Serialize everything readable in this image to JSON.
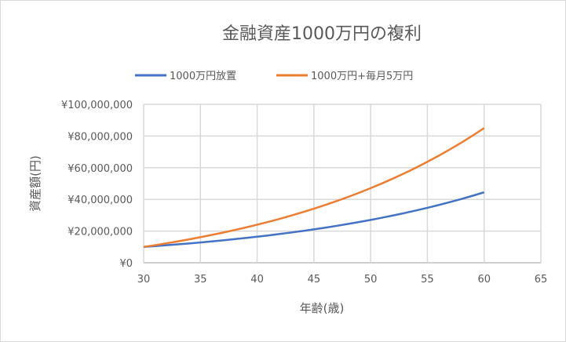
{
  "chart_data": {
    "type": "line",
    "title": "金融資産1000万円の複利",
    "xlabel": "年齢(歳)",
    "ylabel": "資産額(円)",
    "xlim": [
      30,
      65
    ],
    "ylim": [
      0,
      100000000
    ],
    "x_ticks": [
      "30",
      "35",
      "40",
      "45",
      "50",
      "55",
      "60",
      "65"
    ],
    "y_ticks": [
      "¥0",
      "¥20,000,000",
      "¥40,000,000",
      "¥60,000,000",
      "¥80,000,000",
      "¥100,000,000"
    ],
    "grid": true,
    "legend_position": "top",
    "x": [
      30,
      31,
      32,
      33,
      34,
      35,
      36,
      37,
      38,
      39,
      40,
      41,
      42,
      43,
      44,
      45,
      46,
      47,
      48,
      49,
      50,
      51,
      52,
      53,
      54,
      55,
      56,
      57,
      58,
      59,
      60
    ],
    "series": [
      {
        "name": "1000万円放置",
        "color": "#4472c4",
        "values": [
          10000000,
          10510000,
          11050000,
          11610000,
          12200000,
          12820000,
          13480000,
          14170000,
          14890000,
          15650000,
          16450000,
          17290000,
          18170000,
          19090000,
          20070000,
          21090000,
          22170000,
          23300000,
          24490000,
          25740000,
          27050000,
          28430000,
          29880000,
          31400000,
          33000000,
          34690000,
          36460000,
          38320000,
          40270000,
          42330000,
          44490000
        ]
      },
      {
        "name": "1000万円+毎月5万円",
        "color": "#ed7d31",
        "values": [
          10000000,
          11110000,
          12280000,
          13500000,
          14790000,
          16150000,
          17570000,
          19070000,
          20640000,
          22290000,
          24030000,
          25850000,
          27770000,
          29790000,
          31910000,
          34130000,
          36480000,
          38940000,
          41520000,
          44240000,
          47100000,
          50100000,
          53250000,
          56570000,
          60050000,
          63720000,
          67570000,
          71610000,
          75860000,
          80330000,
          85030000
        ]
      }
    ]
  }
}
